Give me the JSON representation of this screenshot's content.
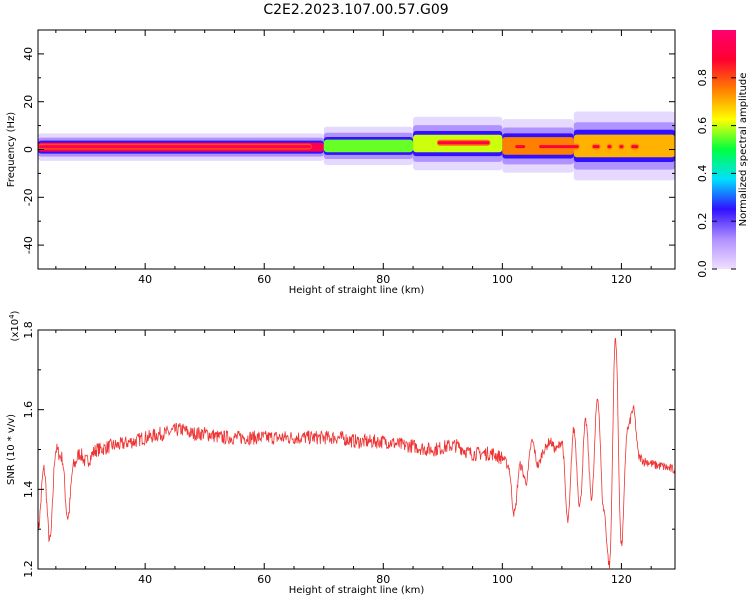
{
  "title": "C2E2.2023.107.00.57.G09",
  "chart_data": [
    {
      "type": "heatmap",
      "xlabel": "Height of straight line (km)",
      "ylabel": "Frequency (Hz)",
      "xlim": [
        22,
        129
      ],
      "ylim": [
        -50,
        50
      ],
      "xticks": [
        40,
        60,
        80,
        100,
        120
      ],
      "yticks": [
        -40,
        -20,
        0,
        20,
        40
      ],
      "colorbar": {
        "label": "Normalized spectral amplitude",
        "range": [
          0,
          1
        ],
        "ticks": [
          0.0,
          0.2,
          0.4,
          0.6,
          0.8
        ],
        "colormap": [
          "#f0e0ff",
          "#b090ff",
          "#3010ff",
          "#00e0ff",
          "#00ff40",
          "#ffff00",
          "#ff8000",
          "#ff0030",
          "#ff0070"
        ]
      },
      "bands": [
        {
          "x": [
            22,
            70
          ],
          "center_hz": 1.0,
          "halfwidth_hz": 1.8,
          "level": 0.93
        },
        {
          "x": [
            70,
            85
          ],
          "center_hz": 1.5,
          "halfwidth_hz": 2.5,
          "level": 0.55
        },
        {
          "x": [
            85,
            100
          ],
          "center_hz": 2.5,
          "halfwidth_hz": 3.5,
          "level": 0.6
        },
        {
          "x": [
            100,
            112
          ],
          "center_hz": 1.5,
          "halfwidth_hz": 3.5,
          "level": 0.75
        },
        {
          "x": [
            112,
            129
          ],
          "center_hz": 1.5,
          "halfwidth_hz": 4.5,
          "level": 0.7
        }
      ],
      "hot_spots": [
        {
          "x": [
            22,
            68
          ],
          "hz": 1.2,
          "level": 0.95
        },
        {
          "x": [
            89,
            98
          ],
          "hz": 2.8,
          "level": 0.92
        },
        {
          "x": [
            102,
            104
          ],
          "hz": 1.2,
          "level": 0.9
        },
        {
          "x": [
            106,
            113
          ],
          "hz": 1.2,
          "level": 0.9
        },
        {
          "x": [
            115,
            116.5
          ],
          "hz": 1.2,
          "level": 0.9
        },
        {
          "x": [
            117.5,
            118.5
          ],
          "hz": 1.2,
          "level": 0.9
        },
        {
          "x": [
            119.5,
            120.5
          ],
          "hz": 1.2,
          "level": 0.9
        },
        {
          "x": [
            121.5,
            123
          ],
          "hz": 1.2,
          "level": 0.9
        }
      ]
    },
    {
      "type": "line",
      "xlabel": "Height of straight line (km)",
      "ylabel": "SNR (10 * v/v)",
      "scale_label": "(x10",
      "scale_exp": "4",
      "scale_close": ")",
      "xlim": [
        22,
        129
      ],
      "ylim": [
        1.2,
        1.8
      ],
      "xticks": [
        40,
        60,
        80,
        100,
        120
      ],
      "yticks": [
        1.2,
        1.4,
        1.6,
        1.8
      ],
      "line_color": "#ee3333",
      "series": [
        {
          "x": [
            22,
            23,
            24,
            25,
            26,
            27,
            28,
            29,
            30,
            32,
            35,
            38,
            40,
            43,
            46,
            48,
            50,
            53,
            56,
            60,
            64,
            68,
            72,
            76,
            80,
            84,
            88,
            92,
            95,
            98,
            100,
            101,
            102,
            103,
            104,
            105,
            106,
            107,
            108,
            109,
            110,
            111,
            112,
            113,
            114,
            115,
            116,
            117,
            118,
            119,
            120,
            121,
            122,
            123,
            124,
            126,
            129
          ],
          "values": [
            1.3,
            1.45,
            1.27,
            1.5,
            1.48,
            1.33,
            1.46,
            1.49,
            1.47,
            1.5,
            1.51,
            1.52,
            1.53,
            1.54,
            1.55,
            1.54,
            1.54,
            1.53,
            1.53,
            1.53,
            1.53,
            1.53,
            1.53,
            1.52,
            1.52,
            1.51,
            1.5,
            1.51,
            1.49,
            1.49,
            1.48,
            1.46,
            1.34,
            1.46,
            1.42,
            1.52,
            1.46,
            1.5,
            1.52,
            1.5,
            1.52,
            1.32,
            1.55,
            1.36,
            1.57,
            1.38,
            1.63,
            1.35,
            1.21,
            1.78,
            1.26,
            1.55,
            1.6,
            1.48,
            1.47,
            1.46,
            1.45
          ]
        }
      ]
    }
  ]
}
